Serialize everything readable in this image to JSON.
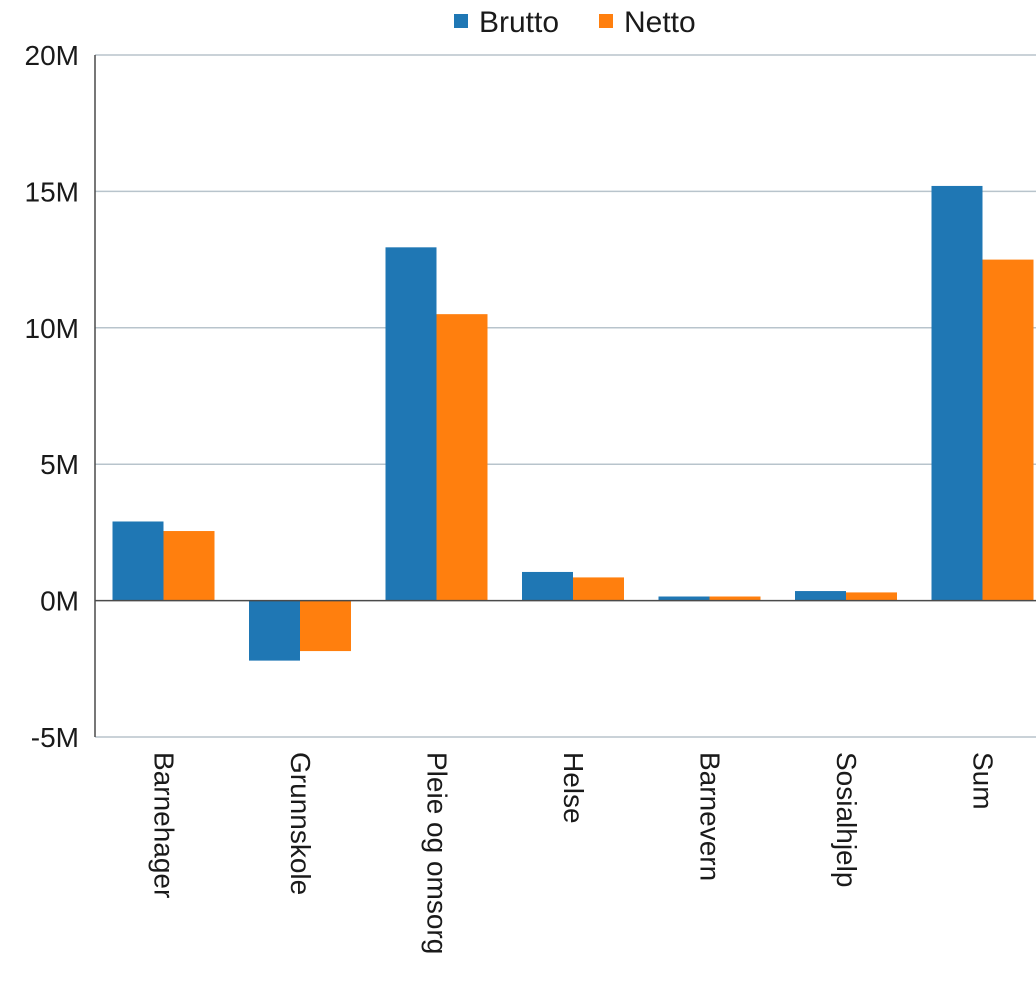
{
  "chart_data": {
    "type": "bar",
    "title": "",
    "xlabel": "",
    "ylabel": "",
    "categories": [
      "Barnehager",
      "Grunnskole",
      "Pleie og omsorg",
      "Helse",
      "Barnevern",
      "Sosialhjelp",
      "Sum"
    ],
    "series": [
      {
        "name": "Brutto",
        "color": "#1f77b4",
        "values": [
          2900000,
          -2200000,
          12950000,
          1050000,
          150000,
          350000,
          15200000
        ]
      },
      {
        "name": "Netto",
        "color": "#ff7f0e",
        "values": [
          2550000,
          -1850000,
          10500000,
          850000,
          150000,
          300000,
          12500000
        ]
      }
    ],
    "ylim": [
      -5000000,
      20000000
    ],
    "yticks": [
      {
        "value": 20000000,
        "label": "20M"
      },
      {
        "value": 15000000,
        "label": "15M"
      },
      {
        "value": 10000000,
        "label": "10M"
      },
      {
        "value": 5000000,
        "label": "5M"
      },
      {
        "value": 0,
        "label": "0M"
      },
      {
        "value": -5000000,
        "label": "-5M"
      }
    ],
    "grid": true,
    "legend": "top-center"
  }
}
